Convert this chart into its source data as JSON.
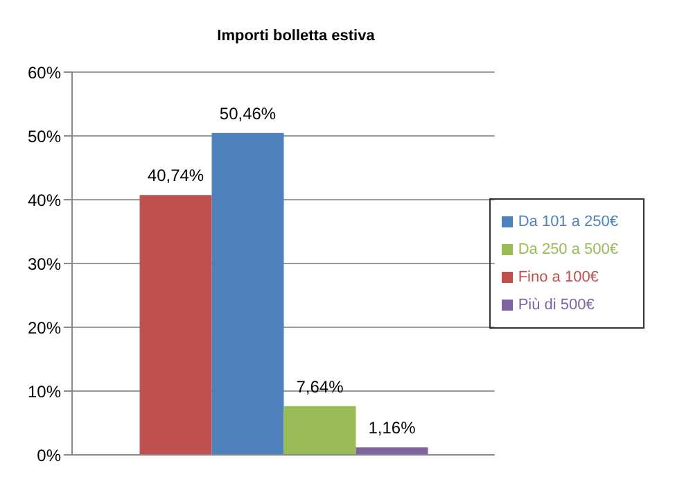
{
  "chart_data": {
    "type": "bar",
    "title": "Importi bolletta estiva",
    "categories": [
      null
    ],
    "series": [
      {
        "name": "Fino a 100€",
        "color": "#c0504d",
        "values": [
          40.74
        ],
        "value_labels": [
          "40,74%"
        ]
      },
      {
        "name": "Da 101 a 250€",
        "color": "#4f81bd",
        "values": [
          50.46
        ],
        "value_labels": [
          "50,46%"
        ]
      },
      {
        "name": "Da 250 a 500€",
        "color": "#9bbb59",
        "values": [
          7.64
        ],
        "value_labels": [
          "7,64%"
        ]
      },
      {
        "name": "Più di 500€",
        "color": "#8064a2",
        "values": [
          1.16
        ],
        "value_labels": [
          "1,16%"
        ]
      }
    ],
    "ylim": [
      0,
      60
    ],
    "yticks": [
      {
        "value": 0,
        "label": "0%"
      },
      {
        "value": 10,
        "label": "10%"
      },
      {
        "value": 20,
        "label": "20%"
      },
      {
        "value": 30,
        "label": "30%"
      },
      {
        "value": 40,
        "label": "40%"
      },
      {
        "value": 50,
        "label": "50%"
      },
      {
        "value": 60,
        "label": "60%"
      }
    ],
    "grid": "y",
    "legend": "right"
  }
}
